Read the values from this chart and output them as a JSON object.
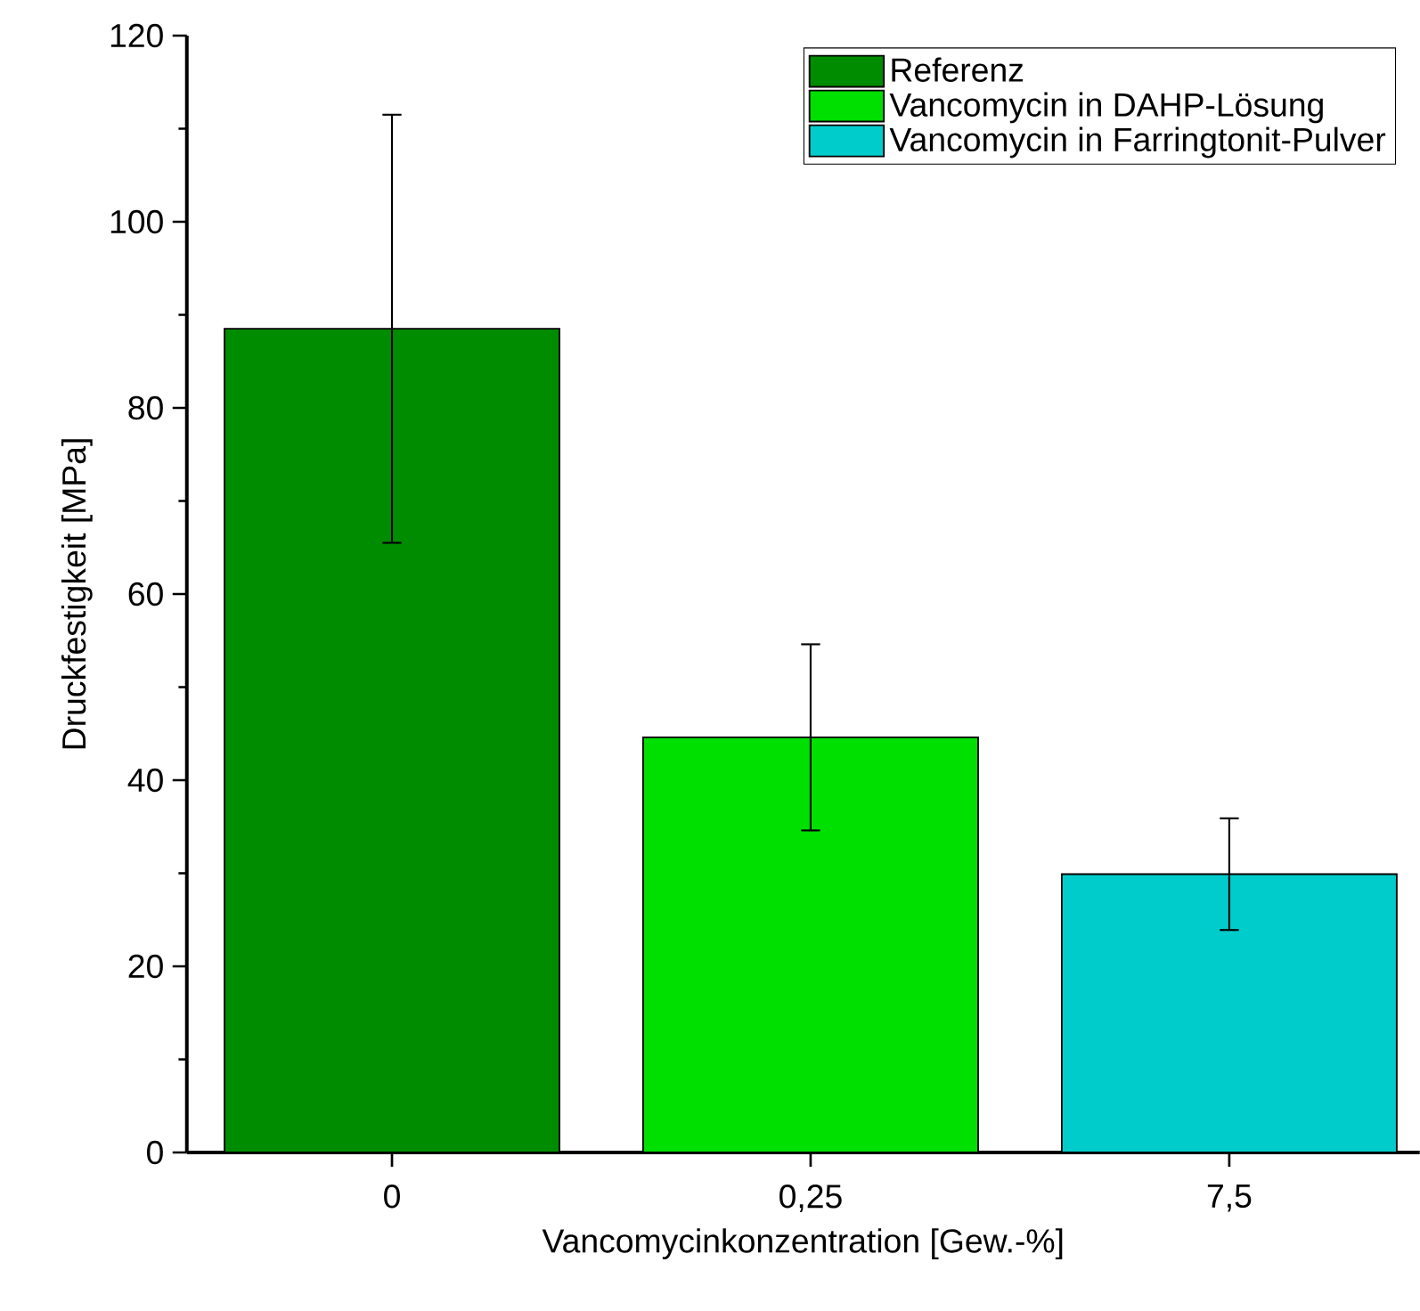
{
  "chart_data": {
    "type": "bar",
    "xlabel": "Vancomycinkonzentration [Gew.-%]",
    "ylabel": "Druckfestigkeit [MPa]",
    "categories": [
      "0",
      "0,25",
      "7,5"
    ],
    "ylim": [
      0,
      120
    ],
    "yticks": [
      0,
      20,
      40,
      60,
      80,
      100,
      120
    ],
    "legend": "top right",
    "series": [
      {
        "name": "Referenz",
        "color": "#008c00",
        "values": [
          88.5,
          null,
          null
        ],
        "errors": [
          23,
          null,
          null
        ]
      },
      {
        "name": "Vancomycin in DAHP-Lösung",
        "color": "#00e000",
        "values": [
          null,
          44.6,
          null
        ],
        "errors": [
          null,
          10,
          null
        ]
      },
      {
        "name": "Vancomycin in Farringtonit-Pulver",
        "color": "#00cccc",
        "values": [
          null,
          null,
          29.9
        ],
        "errors": [
          null,
          null,
          6
        ]
      }
    ]
  }
}
